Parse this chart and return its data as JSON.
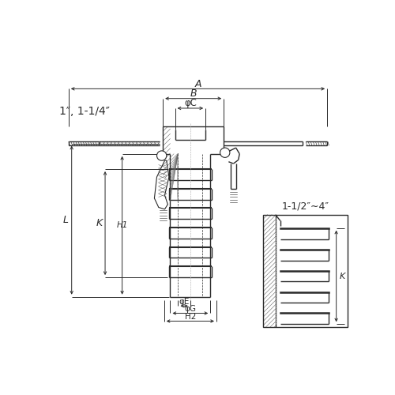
{
  "bg_color": "#ffffff",
  "line_color": "#2a2a2a",
  "dim_color": "#2a2a2a",
  "fig_width": 5.0,
  "fig_height": 5.0,
  "labels": {
    "A": "A",
    "B": "B",
    "phiC": "φC",
    "L": "L",
    "K": "K",
    "H1": "H1",
    "phiE": "φE",
    "phiG": "φG",
    "H2": "H2",
    "size1": "1\", 1-1/4\"",
    "size2": "1-1/2\"∼4\""
  }
}
